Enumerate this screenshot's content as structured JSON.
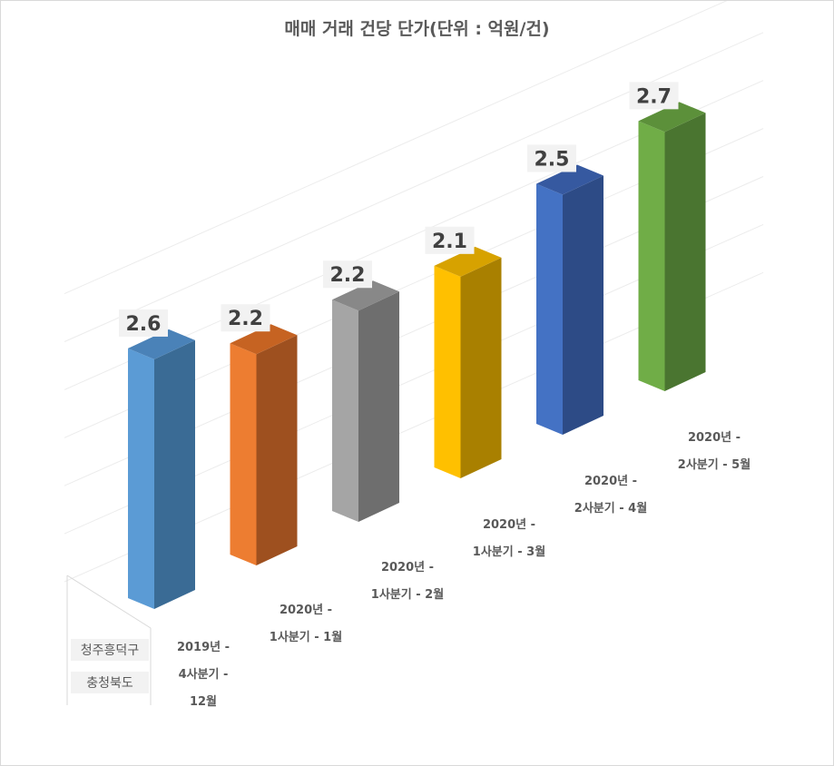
{
  "chart_data": {
    "type": "bar",
    "title": "매매 거래 건당 단가(단위 : 억원/건)",
    "categories": [
      [
        "2019년 -",
        "4사분기 -",
        "12월"
      ],
      [
        "2020년 -",
        "1사분기 - 1월"
      ],
      [
        "2020년 -",
        "1사분기 - 2월"
      ],
      [
        "2020년 -",
        "1사분기 - 3월"
      ],
      [
        "2020년 -",
        "2사분기 - 4월"
      ],
      [
        "2020년 -",
        "2사분기 - 5월"
      ]
    ],
    "series": [
      {
        "values": [
          2.6,
          2.2,
          2.2,
          2.1,
          2.5,
          2.7
        ],
        "labels": [
          "2.6",
          "2.2",
          "2.2",
          "2.1",
          "2.5",
          "2.7"
        ]
      }
    ],
    "row_labels": [
      "청주흥덕구",
      "충청북도"
    ],
    "ylim": [
      0,
      3
    ],
    "grid": true,
    "legend": "none",
    "colors": {
      "front": [
        "#5b9bd5",
        "#ed7d31",
        "#a5a5a5",
        "#ffc000",
        "#4472c4",
        "#70ad47"
      ],
      "side": [
        "#3a6b95",
        "#9e501f",
        "#6e6e6e",
        "#a98000",
        "#2d4b86",
        "#4a7530"
      ],
      "top": [
        "#4a82b8",
        "#c66322",
        "#888888",
        "#d7a200",
        "#3659a0",
        "#5c903a"
      ]
    }
  }
}
